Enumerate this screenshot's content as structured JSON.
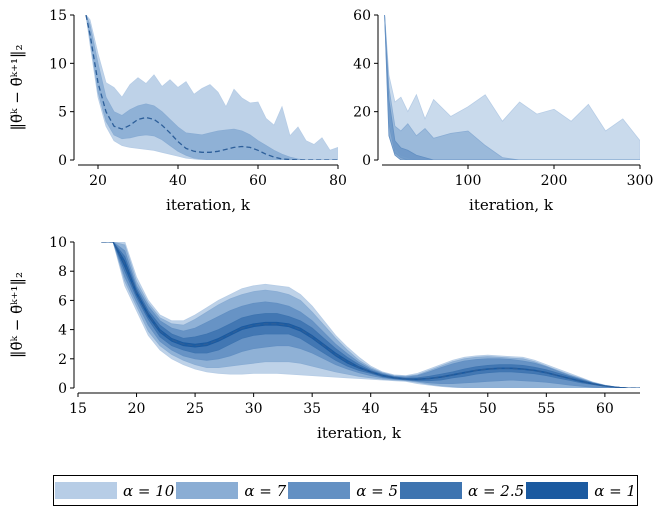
{
  "chart_data": [
    {
      "type": "area",
      "panel": "top-left",
      "ylabel": "‖θ̃ᵏ − θ̄ᵏ⁺¹‖₂",
      "xlabel": "iteration, k",
      "xlim": [
        15,
        80
      ],
      "ylim": [
        0,
        15
      ],
      "xticks": [
        "20",
        "40",
        "60",
        "80"
      ],
      "yticks": [
        "0",
        "5",
        "10",
        "15"
      ],
      "x": [
        17,
        18,
        20,
        22,
        24,
        26,
        28,
        30,
        32,
        34,
        36,
        38,
        40,
        42,
        44,
        46,
        48,
        50,
        52,
        54,
        56,
        58,
        60,
        62,
        64,
        66,
        68,
        70,
        72,
        74,
        76,
        78,
        80
      ],
      "mean": [
        15,
        13,
        8,
        5,
        3.5,
        3.2,
        3.6,
        4.2,
        4.4,
        4.2,
        3.6,
        2.8,
        1.9,
        1.2,
        0.9,
        0.8,
        0.8,
        0.9,
        1.1,
        1.3,
        1.4,
        1.3,
        1.0,
        0.6,
        0.3,
        0.1,
        0.05,
        0,
        0,
        0,
        0,
        0,
        0
      ],
      "series": [
        {
          "name": "α = 10",
          "upper": [
            15,
            14.5,
            11,
            8,
            7.5,
            6.5,
            7.8,
            8.5,
            7.9,
            8.8,
            7.6,
            8.3,
            7.5,
            8.1,
            6.8,
            7.4,
            7.8,
            7.0,
            5.5,
            7.3,
            6.4,
            5.9,
            6.0,
            4.3,
            3.6,
            5.5,
            2.5,
            3.4,
            2.0,
            1.6,
            2.3,
            1.0,
            1.3
          ],
          "lower": [
            15,
            12,
            6.5,
            3.5,
            2.0,
            1.5,
            1.3,
            1.2,
            1.1,
            1.0,
            0.8,
            0.6,
            0.4,
            0.2,
            0.1,
            0,
            0,
            0,
            0,
            0,
            0,
            0,
            0,
            0,
            0,
            0,
            0,
            0,
            0,
            0,
            0,
            0,
            0
          ]
        },
        {
          "name": "α = 7",
          "upper": [
            15,
            14,
            10,
            6.5,
            5.0,
            4.6,
            5.2,
            5.6,
            5.8,
            5.6,
            5.0,
            4.2,
            3.4,
            2.8,
            2.7,
            2.6,
            2.8,
            3.0,
            3.1,
            3.2,
            3.0,
            2.6,
            2.0,
            1.5,
            1.0,
            0.6,
            0.3,
            0.1,
            0,
            0,
            0,
            0,
            0
          ],
          "lower": [
            15,
            12.5,
            7,
            4.0,
            2.6,
            2.2,
            2.3,
            2.5,
            2.6,
            2.5,
            2.1,
            1.5,
            0.9,
            0.5,
            0.2,
            0.1,
            0,
            0,
            0,
            0,
            0,
            0,
            0,
            0,
            0,
            0,
            0,
            0,
            0,
            0,
            0,
            0,
            0
          ]
        }
      ]
    },
    {
      "type": "area",
      "panel": "top-right",
      "xlabel": "iteration, k",
      "xlim": [
        0,
        300
      ],
      "ylim": [
        0,
        60
      ],
      "xticks": [
        "100",
        "200",
        "300"
      ],
      "yticks": [
        "0",
        "20",
        "40",
        "60"
      ],
      "x": [
        3,
        8,
        15,
        22,
        30,
        40,
        50,
        60,
        80,
        100,
        120,
        140,
        160,
        180,
        200,
        220,
        240,
        260,
        280,
        300
      ],
      "series": [
        {
          "name": "α = 10",
          "upper": [
            60,
            35,
            24,
            26,
            20,
            27,
            17,
            25,
            18,
            22,
            27,
            16,
            24,
            19,
            21,
            16,
            23,
            12,
            17,
            8
          ],
          "lower": [
            60,
            20,
            5,
            2,
            1,
            0,
            0,
            0,
            0,
            0,
            0,
            0,
            0,
            0,
            0,
            0,
            0,
            0,
            0,
            0
          ]
        },
        {
          "name": "α = 7",
          "upper": [
            60,
            30,
            14,
            12,
            15,
            10,
            13,
            9,
            11,
            12,
            6,
            1,
            0,
            0,
            0,
            0,
            0,
            0,
            0,
            0
          ],
          "lower": [
            60,
            15,
            3,
            1,
            0,
            0,
            0,
            0,
            0,
            0,
            0,
            0,
            0,
            0,
            0,
            0,
            0,
            0,
            0,
            0
          ]
        },
        {
          "name": "α = 5",
          "upper": [
            60,
            25,
            8,
            5,
            4,
            2,
            1,
            0,
            0,
            0,
            0,
            0,
            0,
            0,
            0,
            0,
            0,
            0,
            0,
            0
          ],
          "lower": [
            60,
            10,
            2,
            0,
            0,
            0,
            0,
            0,
            0,
            0,
            0,
            0,
            0,
            0,
            0,
            0,
            0,
            0,
            0,
            0
          ]
        }
      ]
    },
    {
      "type": "area",
      "panel": "bottom",
      "ylabel": "‖θ̃ᵏ − θ̄ᵏ⁺¹‖₂",
      "xlabel": "iteration, k",
      "xlim": [
        15,
        63
      ],
      "ylim": [
        0,
        10
      ],
      "xticks": [
        "15",
        "20",
        "25",
        "30",
        "35",
        "40",
        "45",
        "50",
        "55",
        "60"
      ],
      "yticks": [
        "0",
        "2",
        "4",
        "6",
        "8",
        "10"
      ],
      "x": [
        17,
        18,
        19,
        20,
        21,
        22,
        23,
        24,
        25,
        26,
        27,
        28,
        29,
        30,
        31,
        32,
        33,
        34,
        35,
        36,
        37,
        38,
        39,
        40,
        41,
        42,
        43,
        44,
        45,
        46,
        47,
        48,
        49,
        50,
        51,
        52,
        53,
        54,
        55,
        56,
        57,
        58,
        59,
        60,
        61,
        62,
        63
      ],
      "mean": [
        14,
        11.5,
        8.5,
        6.5,
        5.0,
        3.9,
        3.3,
        3.0,
        2.9,
        3.0,
        3.3,
        3.7,
        4.1,
        4.3,
        4.4,
        4.4,
        4.3,
        4.0,
        3.5,
        2.9,
        2.3,
        1.8,
        1.4,
        1.1,
        0.85,
        0.7,
        0.62,
        0.6,
        0.65,
        0.75,
        0.9,
        1.05,
        1.2,
        1.3,
        1.35,
        1.35,
        1.3,
        1.2,
        1.05,
        0.85,
        0.65,
        0.45,
        0.28,
        0.14,
        0.05,
        0.0,
        0.0
      ],
      "series": [
        {
          "name": "α = 10",
          "upper": [
            15,
            13,
            10.2,
            7.6,
            6.0,
            5.0,
            4.6,
            4.6,
            5.0,
            5.5,
            6.0,
            6.4,
            6.8,
            7.0,
            7.1,
            7.0,
            6.9,
            6.4,
            5.6,
            4.6,
            3.6,
            2.8,
            2.1,
            1.5,
            1.1,
            0.9,
            0.85,
            1.0,
            1.3,
            1.6,
            1.9,
            2.1,
            2.2,
            2.25,
            2.2,
            2.15,
            2.1,
            1.9,
            1.6,
            1.3,
            1.0,
            0.7,
            0.4,
            0.2,
            0.07,
            0,
            0
          ],
          "lower": [
            13,
            10,
            7.0,
            5.3,
            3.6,
            2.6,
            2.0,
            1.6,
            1.3,
            1.1,
            1.0,
            0.95,
            0.95,
            1.0,
            1.0,
            1.0,
            0.95,
            0.9,
            0.85,
            0.8,
            0.75,
            0.7,
            0.65,
            0.6,
            0.55,
            0.5,
            0.45,
            0.3,
            0.2,
            0.1,
            0.05,
            0,
            0,
            0,
            0,
            0,
            0,
            0,
            0,
            0,
            0,
            0,
            0,
            0,
            0,
            0,
            0
          ]
        },
        {
          "name": "α = 7",
          "upper": [
            14.8,
            12.6,
            9.8,
            7.3,
            5.8,
            4.8,
            4.4,
            4.3,
            4.7,
            5.2,
            5.7,
            6.1,
            6.4,
            6.6,
            6.7,
            6.6,
            6.4,
            6.0,
            5.2,
            4.3,
            3.4,
            2.6,
            1.9,
            1.4,
            1.05,
            0.85,
            0.8,
            0.9,
            1.2,
            1.5,
            1.8,
            2.0,
            2.1,
            2.15,
            2.1,
            2.05,
            2.0,
            1.8,
            1.5,
            1.2,
            0.9,
            0.65,
            0.38,
            0.18,
            0.06,
            0,
            0
          ],
          "lower": [
            13.2,
            10.4,
            7.3,
            5.6,
            3.9,
            2.9,
            2.3,
            1.9,
            1.6,
            1.4,
            1.4,
            1.5,
            1.6,
            1.7,
            1.8,
            1.8,
            1.8,
            1.7,
            1.5,
            1.3,
            1.1,
            0.95,
            0.8,
            0.7,
            0.6,
            0.55,
            0.5,
            0.4,
            0.25,
            0.15,
            0.08,
            0.03,
            0,
            0,
            0,
            0,
            0,
            0,
            0,
            0,
            0,
            0,
            0,
            0,
            0,
            0,
            0
          ]
        },
        {
          "name": "α = 5",
          "upper": [
            14.5,
            12.2,
            9.4,
            7.0,
            5.6,
            4.6,
            4.1,
            3.9,
            4.1,
            4.5,
            4.9,
            5.3,
            5.6,
            5.8,
            5.9,
            5.8,
            5.6,
            5.2,
            4.6,
            3.8,
            3.0,
            2.35,
            1.75,
            1.3,
            1.0,
            0.8,
            0.75,
            0.85,
            1.1,
            1.4,
            1.65,
            1.85,
            1.95,
            2.0,
            2.0,
            1.95,
            1.85,
            1.7,
            1.45,
            1.15,
            0.85,
            0.6,
            0.35,
            0.17,
            0.06,
            0,
            0
          ],
          "lower": [
            13.5,
            10.8,
            7.6,
            5.9,
            4.3,
            3.2,
            2.6,
            2.2,
            2.0,
            1.9,
            2.0,
            2.2,
            2.5,
            2.7,
            2.8,
            2.9,
            2.9,
            2.7,
            2.4,
            2.0,
            1.6,
            1.3,
            1.05,
            0.85,
            0.7,
            0.6,
            0.55,
            0.45,
            0.35,
            0.3,
            0.3,
            0.35,
            0.4,
            0.45,
            0.5,
            0.55,
            0.5,
            0.45,
            0.4,
            0.3,
            0.2,
            0.12,
            0.05,
            0,
            0,
            0,
            0
          ]
        },
        {
          "name": "α = 2.5",
          "upper": [
            14.2,
            11.9,
            9.0,
            6.8,
            5.3,
            4.3,
            3.7,
            3.4,
            3.5,
            3.7,
            4.0,
            4.4,
            4.8,
            5.0,
            5.1,
            5.1,
            4.9,
            4.6,
            4.1,
            3.4,
            2.7,
            2.1,
            1.6,
            1.2,
            0.93,
            0.76,
            0.68,
            0.7,
            0.8,
            0.95,
            1.1,
            1.3,
            1.45,
            1.55,
            1.6,
            1.6,
            1.55,
            1.42,
            1.25,
            1.02,
            0.78,
            0.55,
            0.33,
            0.16,
            0.06,
            0,
            0
          ],
          "lower": [
            13.8,
            11.1,
            8.0,
            6.2,
            4.7,
            3.5,
            2.9,
            2.6,
            2.4,
            2.4,
            2.6,
            3.0,
            3.4,
            3.6,
            3.7,
            3.7,
            3.7,
            3.4,
            2.9,
            2.4,
            1.9,
            1.5,
            1.2,
            1.0,
            0.77,
            0.64,
            0.56,
            0.5,
            0.5,
            0.55,
            0.7,
            0.8,
            0.95,
            1.05,
            1.1,
            1.1,
            1.05,
            0.98,
            0.85,
            0.68,
            0.52,
            0.35,
            0.23,
            0.12,
            0.04,
            0,
            0
          ]
        },
        {
          "name": "α = 1",
          "upper": [
            14.1,
            11.7,
            8.7,
            6.6,
            5.1,
            4.0,
            3.4,
            3.1,
            3.0,
            3.1,
            3.4,
            3.8,
            4.2,
            4.4,
            4.5,
            4.5,
            4.4,
            4.1,
            3.6,
            3.0,
            2.4,
            1.9,
            1.45,
            1.13,
            0.88,
            0.72,
            0.64,
            0.63,
            0.68,
            0.78,
            0.93,
            1.08,
            1.23,
            1.33,
            1.38,
            1.38,
            1.33,
            1.23,
            1.08,
            0.88,
            0.68,
            0.48,
            0.3,
            0.15,
            0.05,
            0,
            0
          ],
          "lower": [
            13.9,
            11.3,
            8.3,
            6.4,
            4.9,
            3.8,
            3.2,
            2.9,
            2.8,
            2.9,
            3.2,
            3.6,
            4.0,
            4.2,
            4.3,
            4.3,
            4.2,
            3.9,
            3.4,
            2.8,
            2.2,
            1.7,
            1.35,
            1.07,
            0.82,
            0.68,
            0.6,
            0.57,
            0.62,
            0.72,
            0.87,
            1.02,
            1.17,
            1.27,
            1.32,
            1.32,
            1.27,
            1.17,
            1.02,
            0.82,
            0.62,
            0.42,
            0.26,
            0.13,
            0.05,
            0,
            0
          ]
        }
      ]
    }
  ],
  "legend": {
    "items": [
      {
        "label": "α = 10",
        "color": "#b7cde6"
      },
      {
        "label": "α = 7",
        "color": "#8aadd4"
      },
      {
        "label": "α = 5",
        "color": "#6390c3"
      },
      {
        "label": "α = 2.5",
        "color": "#3e74b0"
      },
      {
        "label": "α = 1",
        "color": "#1b5aa0"
      }
    ],
    "placement": "bottom"
  },
  "colors": {
    "mean_line": "#2d5f9a",
    "axis": "#000000"
  }
}
